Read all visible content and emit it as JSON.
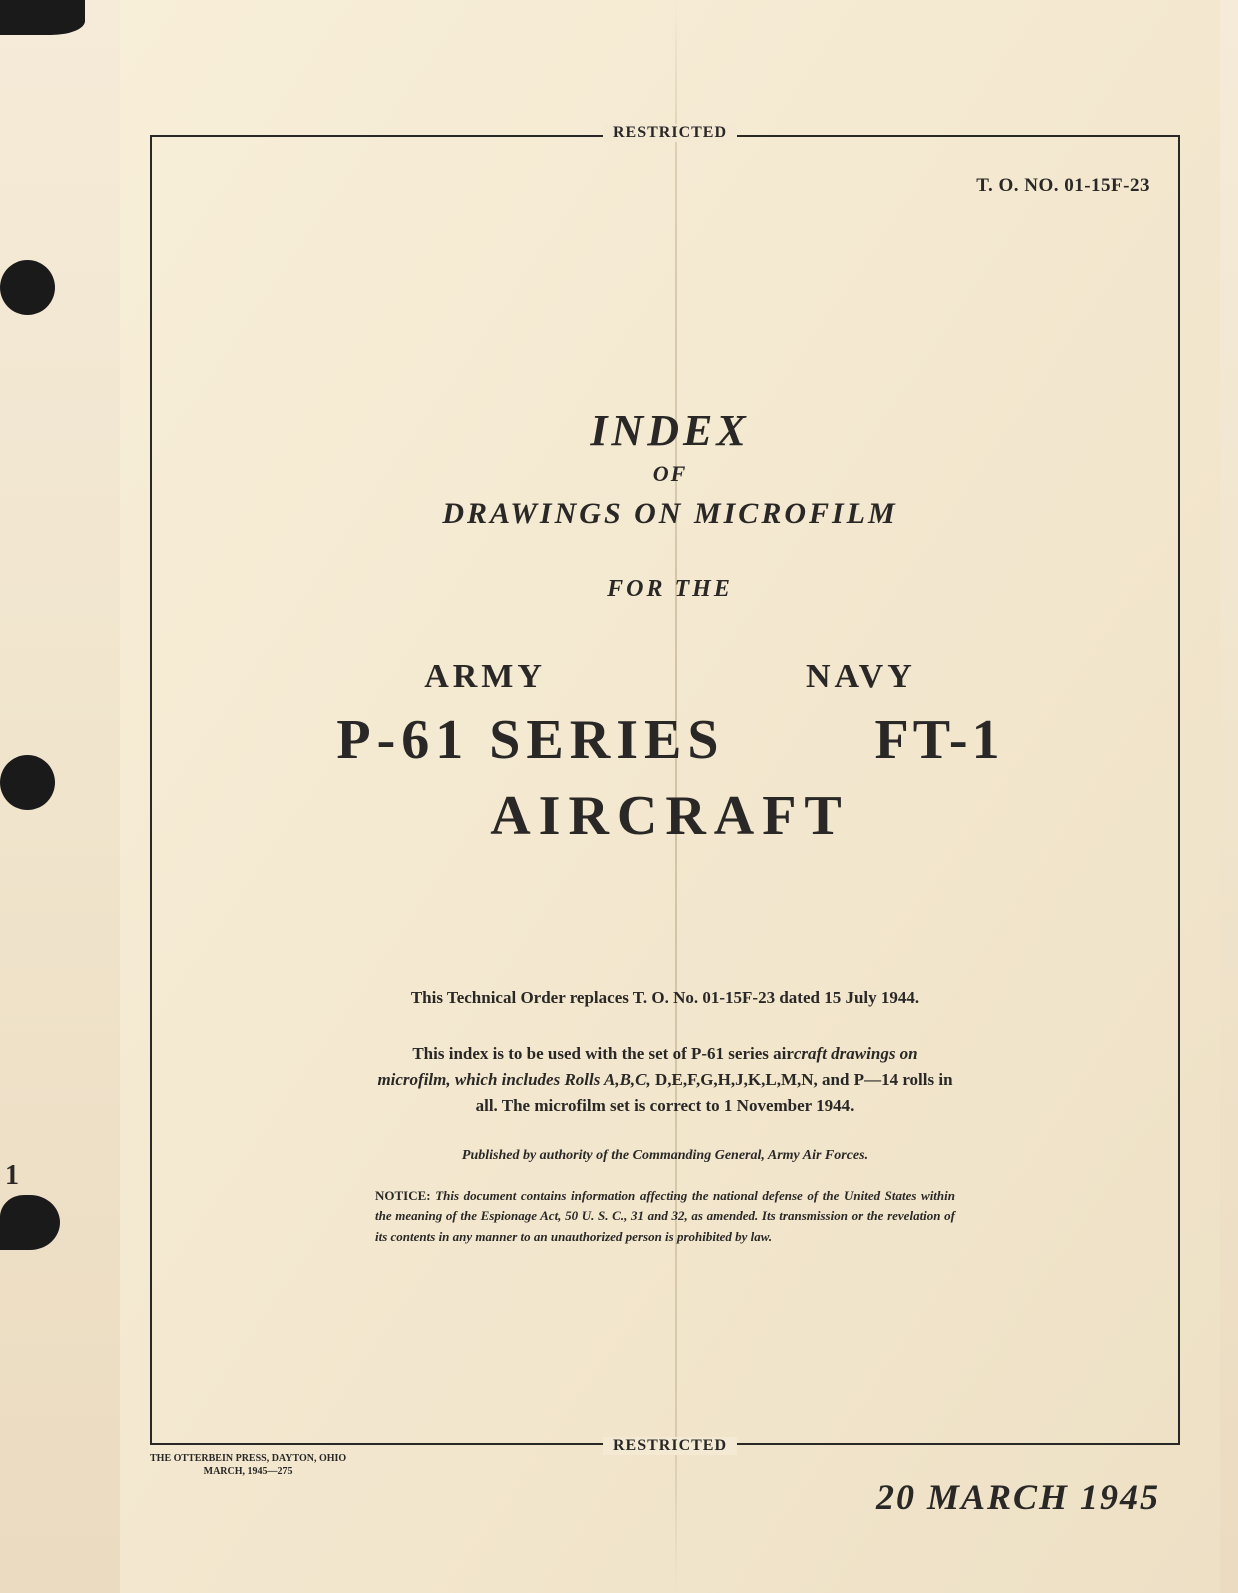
{
  "edge": {
    "number": "1"
  },
  "header": {
    "restricted_label": "RESTRICTED",
    "to_number": "T. O. NO. 01-15F-23"
  },
  "title": {
    "index": "INDEX",
    "of": "OF",
    "drawings": "DRAWINGS ON MICROFILM",
    "for_the": "FOR THE",
    "army": "ARMY",
    "navy": "NAVY",
    "p61": "P-61 SERIES",
    "ft1": "FT-1",
    "aircraft": "AIRCRAFT"
  },
  "body": {
    "replaces": "This Technical Order replaces T. O. No. 01-15F-23 dated 15 July 1944.",
    "usage_part1": "This index is to be used with the set of P-61 series air",
    "usage_part2_italic": "craft drawings on microfilm, which includes Rolls A,B,C,",
    "usage_part3": "D,E,F,G,H,J,K,L,M,N, and P—14 rolls in all. The microfilm set is correct to 1 November 1944.",
    "published": "Published by authority of the Commanding General, Army Air Forces.",
    "notice_label": "NOTICE:",
    "notice": " This document contains information affecting the national defense of the United States within the meaning of the Espionage Act, 50 U. S. C., 31 and 32, as amended. Its transmission or the revelation of its contents in any manner to an unauthorized person is prohibited by law."
  },
  "footer": {
    "restricted_label": "RESTRICTED",
    "printer_line1": "THE OTTERBEIN PRESS, DAYTON, OHIO",
    "printer_line2": "MARCH, 1945—275",
    "date": "20 MARCH 1945"
  },
  "styling": {
    "page_bg": "#f4e9d3",
    "text_color": "#2a2826",
    "border_color": "#2a2826",
    "artifact_color": "#1a1a1a"
  }
}
